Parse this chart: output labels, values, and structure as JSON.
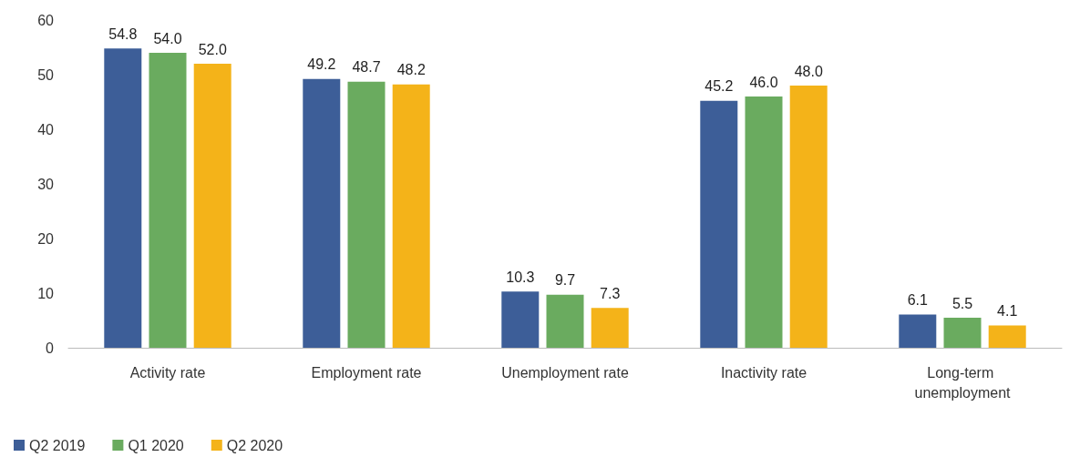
{
  "chart_data": {
    "type": "bar",
    "categories": [
      "Activity rate",
      "Employment rate",
      "Unemployment rate",
      "Inactivity rate",
      "Long-term unemployment"
    ],
    "series": [
      {
        "name": "Q2 2019",
        "color": "#3d5e98",
        "values": [
          54.8,
          49.2,
          10.3,
          45.2,
          6.1
        ],
        "value_labels": [
          "54.8",
          "49.2",
          "10.3",
          "45.2",
          "6.1"
        ]
      },
      {
        "name": "Q1 2020",
        "color": "#6aab5f",
        "values": [
          54,
          48.7,
          9.7,
          46,
          5.5
        ],
        "value_labels": [
          "54.0",
          "48.7",
          "9.7",
          "46.0",
          "5.5"
        ]
      },
      {
        "name": "Q2 2020",
        "color": "#f4b319",
        "values": [
          52,
          48.2,
          7.3,
          48,
          4.1
        ],
        "value_labels": [
          "52.0",
          "48.2",
          "7.3",
          "48.0",
          "4.1"
        ]
      }
    ],
    "ylim": [
      0,
      60
    ],
    "yticks": [
      0,
      10,
      20,
      30,
      40,
      50,
      60
    ],
    "grid": false,
    "legend": "bottom left"
  }
}
